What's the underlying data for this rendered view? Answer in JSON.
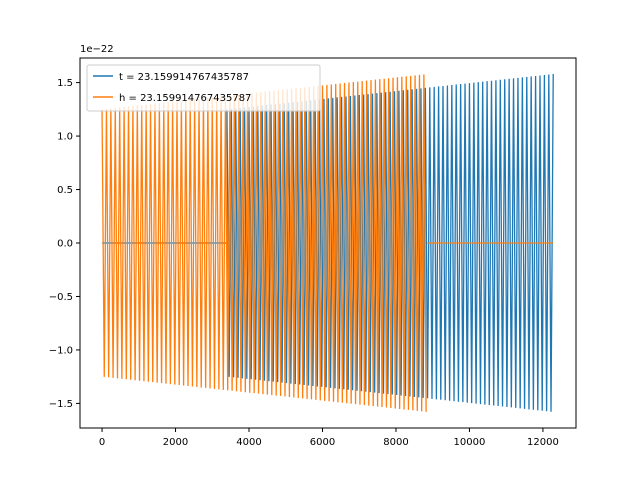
{
  "chart_data": {
    "type": "line",
    "title": "",
    "xlabel": "",
    "ylabel": "",
    "xlim": [
      -600,
      12900
    ],
    "ylim": [
      -1.73,
      1.73
    ],
    "y_offset_text": "1e−22",
    "x_ticks": [
      0,
      2000,
      4000,
      6000,
      8000,
      10000,
      12000
    ],
    "x_tick_labels": [
      "0",
      "2000",
      "4000",
      "6000",
      "8000",
      "10000",
      "12000"
    ],
    "y_ticks": [
      -1.5,
      -1.0,
      -0.5,
      0.0,
      0.5,
      1.0,
      1.5
    ],
    "y_tick_labels": [
      "−1.5",
      "−1.0",
      "−0.5",
      "0.0",
      "0.5",
      "1.0",
      "1.5"
    ],
    "grid": false,
    "legend_position": "top-left",
    "series": [
      {
        "name": "t = 23.159914767435787",
        "color": "#1f77b4",
        "signal_start_x": 3400,
        "signal_end_x": 12280,
        "zero_from_x": 0,
        "amplitude_start": 1.25,
        "amplitude_end": 1.58
      },
      {
        "name": "h = 23.159914767435787",
        "color": "#ff7f0e",
        "signal_start_x": 0,
        "signal_end_x": 8850,
        "zero_to_x": 12280,
        "amplitude_start": 1.25,
        "amplitude_end": 1.58
      }
    ]
  }
}
